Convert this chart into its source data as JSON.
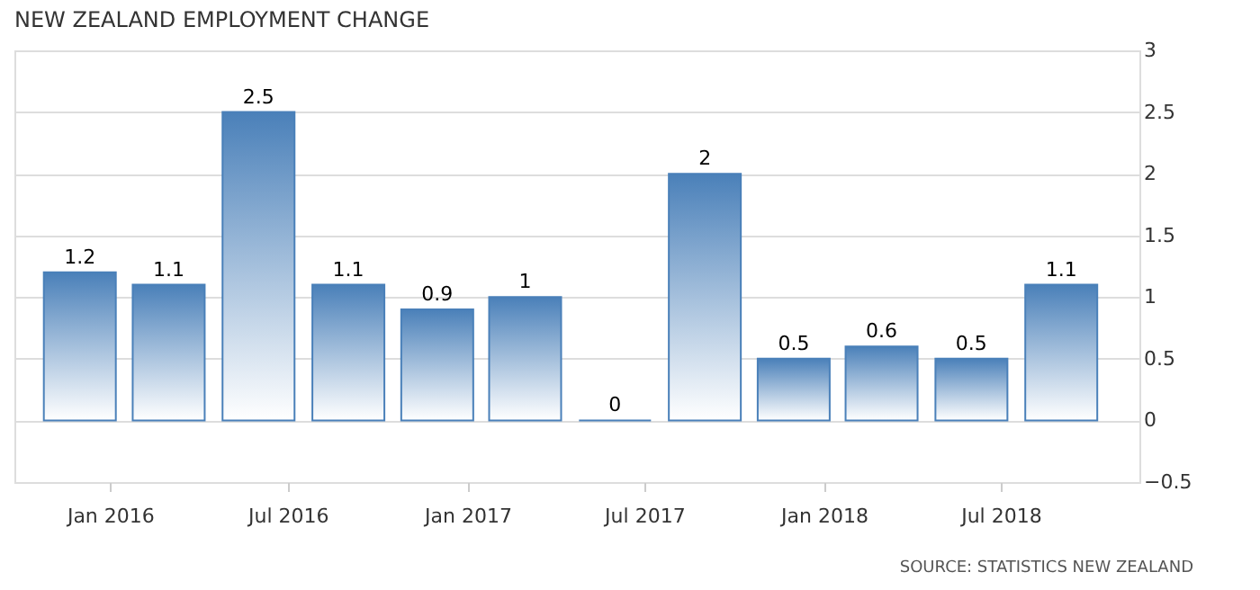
{
  "chart_data": {
    "type": "bar",
    "title": "NEW ZEALAND EMPLOYMENT CHANGE",
    "x": [
      "2015-12",
      "2016-03",
      "2016-06",
      "2016-09",
      "2016-12",
      "2017-03",
      "2017-06",
      "2017-09",
      "2017-12",
      "2018-03",
      "2018-06",
      "2018-09"
    ],
    "values": [
      1.2,
      1.1,
      2.5,
      1.1,
      0.9,
      1,
      0,
      2,
      0.5,
      0.6,
      0.5,
      1.1
    ],
    "color": "#4a80b9",
    "data_labels": true,
    "grid": "y",
    "xlim": [
      "2015-09-25",
      "2018-11-20"
    ],
    "xticks": [
      {
        "value": "2016-01",
        "label": "Jan 2016"
      },
      {
        "value": "2016-07",
        "label": "Jul 2016"
      },
      {
        "value": "2017-01",
        "label": "Jan 2017"
      },
      {
        "value": "2017-07",
        "label": "Jul 2017"
      },
      {
        "value": "2018-01",
        "label": "Jan 2018"
      },
      {
        "value": "2018-07",
        "label": "Jul 2018"
      }
    ],
    "ylim": [
      -0.5,
      3
    ],
    "yticks": [
      -0.5,
      0,
      0.5,
      1,
      1.5,
      2,
      2.5,
      3
    ],
    "annotations": [
      "SOURCE: STATISTICS NEW ZEALAND"
    ]
  }
}
